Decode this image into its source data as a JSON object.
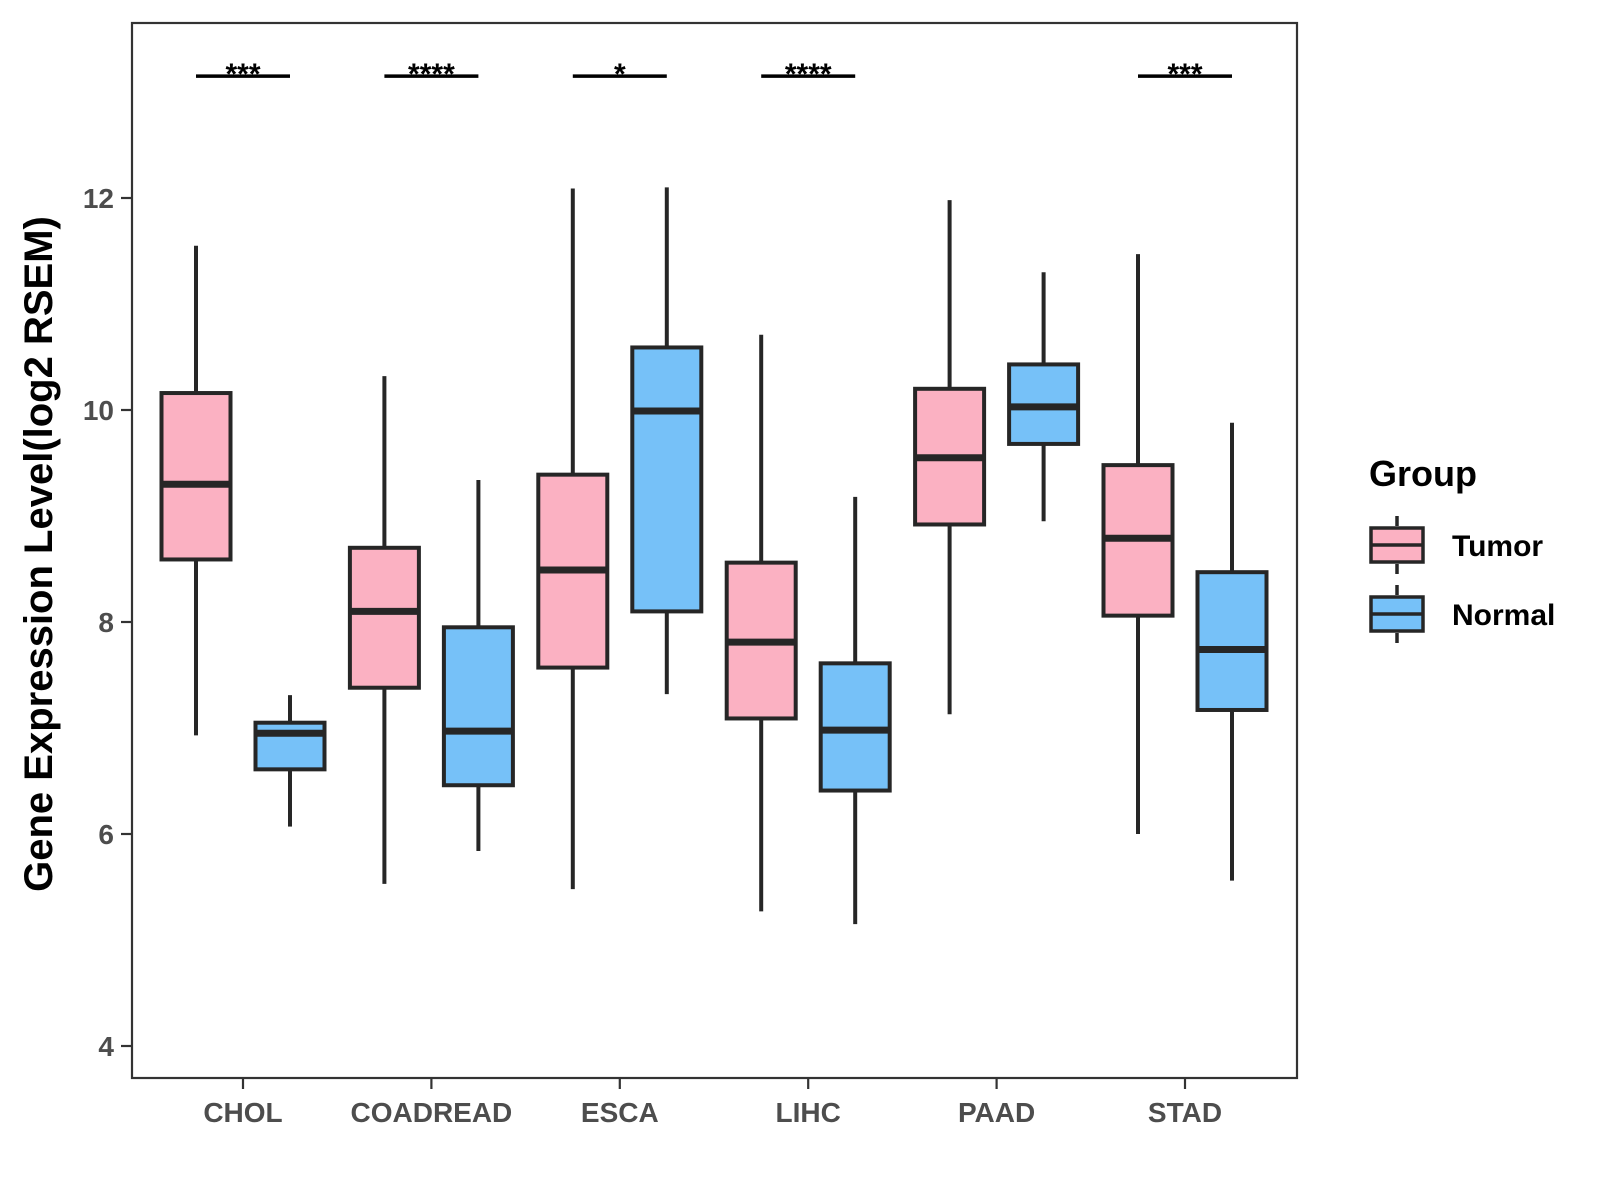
{
  "chart_data": {
    "type": "boxplot",
    "ylabel": "Gene Expression Level(log2 RSEM)",
    "xlabel": "",
    "ylim": [
      3.9,
      13.9
    ],
    "yticks": [
      4,
      6,
      8,
      10,
      12
    ],
    "categories": [
      "CHOL",
      "COADREAD",
      "ESCA",
      "LIHC",
      "PAAD",
      "STAD"
    ],
    "grid": false,
    "legend": {
      "title": "Group",
      "position": "right"
    },
    "series": [
      {
        "name": "Tumor",
        "color": "#fbb1c2",
        "boxes": [
          {
            "min": 6.93,
            "q1": 8.59,
            "median": 9.3,
            "q3": 10.16,
            "max": 11.55
          },
          {
            "min": 5.53,
            "q1": 7.38,
            "median": 8.1,
            "q3": 8.7,
            "max": 10.32
          },
          {
            "min": 5.48,
            "q1": 7.57,
            "median": 8.49,
            "q3": 9.39,
            "max": 12.09
          },
          {
            "min": 5.27,
            "q1": 7.09,
            "median": 7.81,
            "q3": 8.56,
            "max": 10.71
          },
          {
            "min": 7.13,
            "q1": 8.92,
            "median": 9.55,
            "q3": 10.2,
            "max": 11.98
          },
          {
            "min": 6.0,
            "q1": 8.06,
            "median": 8.79,
            "q3": 9.48,
            "max": 11.47
          }
        ]
      },
      {
        "name": "Normal",
        "color": "#76c1f8",
        "boxes": [
          {
            "min": 6.07,
            "q1": 6.61,
            "median": 6.95,
            "q3": 7.05,
            "max": 7.31
          },
          {
            "min": 5.84,
            "q1": 6.46,
            "median": 6.97,
            "q3": 7.95,
            "max": 9.34
          },
          {
            "min": 7.32,
            "q1": 8.1,
            "median": 9.99,
            "q3": 10.59,
            "max": 12.1
          },
          {
            "min": 5.15,
            "q1": 6.41,
            "median": 6.98,
            "q3": 7.61,
            "max": 9.18
          },
          {
            "min": 8.95,
            "q1": 9.68,
            "median": 10.03,
            "q3": 10.43,
            "max": 11.3
          },
          {
            "min": 5.56,
            "q1": 7.17,
            "median": 7.74,
            "q3": 8.47,
            "max": 9.88
          }
        ]
      }
    ],
    "significance": [
      "***",
      "****",
      "*",
      "****",
      "",
      "***"
    ],
    "significance_y": 13.15
  }
}
